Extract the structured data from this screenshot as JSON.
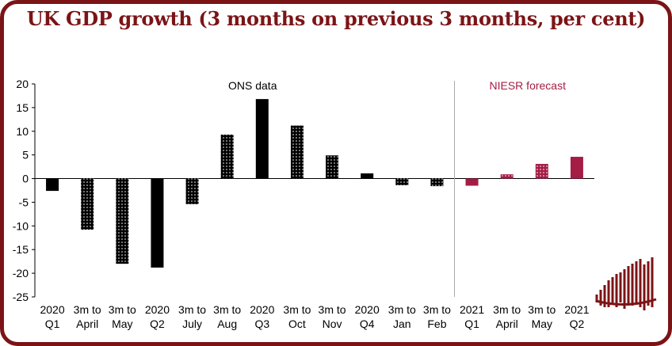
{
  "title": "UK GDP growth (3 months on previous 3 months, per cent)",
  "colors": {
    "ons": "#000000",
    "forecast": "#a51c45",
    "brand": "#7b1416"
  },
  "chart_data": {
    "type": "bar",
    "ylim": [
      -25,
      20
    ],
    "yticks": [
      20,
      15,
      10,
      5,
      0,
      -5,
      -10,
      -15,
      -20,
      -25
    ],
    "categories": [
      [
        "2020",
        "Q1"
      ],
      [
        "3m to",
        "April"
      ],
      [
        "3m to",
        "May"
      ],
      [
        "2020",
        "Q2"
      ],
      [
        "3m to",
        "July"
      ],
      [
        "3m to",
        "Aug"
      ],
      [
        "2020",
        "Q3"
      ],
      [
        "3m to",
        "Oct"
      ],
      [
        "3m to",
        "Nov"
      ],
      [
        "2020",
        "Q4"
      ],
      [
        "3m to",
        "Jan"
      ],
      [
        "3m to",
        "Feb"
      ],
      [
        "2021",
        "Q1"
      ],
      [
        "3m to",
        "April"
      ],
      [
        "3m to",
        "May"
      ],
      [
        "2021",
        "Q2"
      ]
    ],
    "values": [
      -2.6,
      -10.8,
      -18.0,
      -18.8,
      -5.4,
      9.3,
      16.8,
      11.2,
      4.9,
      1.1,
      -1.4,
      -1.6,
      -1.5,
      0.9,
      3.1,
      4.6
    ],
    "styles": [
      "solid",
      "dotted",
      "dotted",
      "solid",
      "dotted",
      "dotted",
      "solid",
      "dotted",
      "dotted",
      "solid",
      "dotted",
      "dotted",
      "solid",
      "dotted",
      "dotted",
      "solid"
    ],
    "groups": [
      "ons",
      "ons",
      "ons",
      "ons",
      "ons",
      "ons",
      "ons",
      "ons",
      "ons",
      "ons",
      "ons",
      "ons",
      "forecast",
      "forecast",
      "forecast",
      "forecast"
    ],
    "annotations": {
      "ons": "ONS data",
      "forecast": "NIESR forecast"
    }
  }
}
